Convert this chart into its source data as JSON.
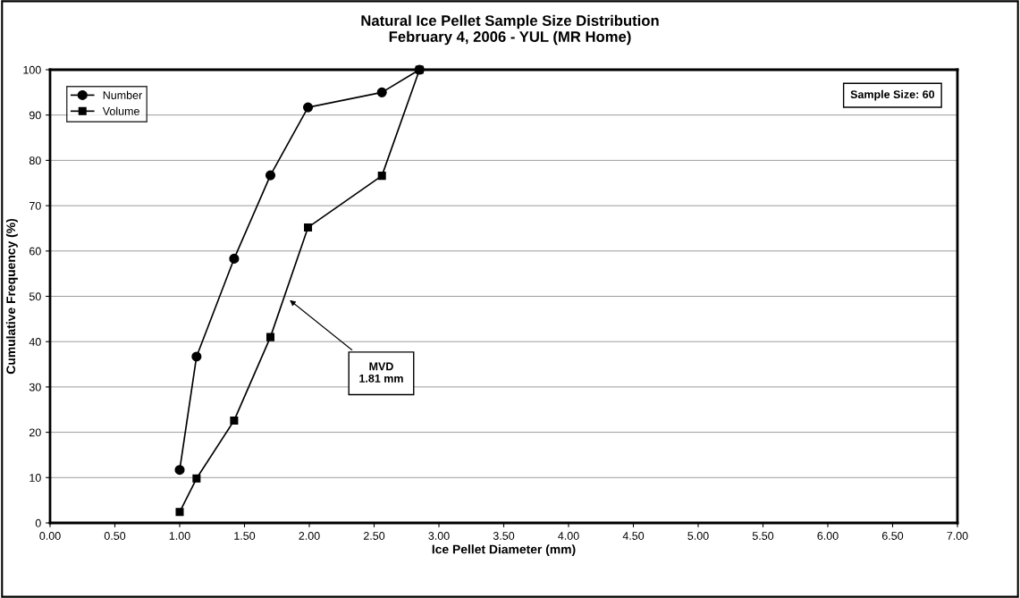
{
  "chart_data": {
    "type": "line",
    "title": "Natural Ice Pellet Sample Size Distribution",
    "subtitle": "February 4, 2006 - YUL (MR Home)",
    "xlabel": "Ice Pellet Diameter (mm)",
    "ylabel": "Cumulative Frequency (%)",
    "x": [
      1.0,
      1.13,
      1.42,
      1.7,
      1.99,
      2.56,
      2.85
    ],
    "series": [
      {
        "name": "Number",
        "color": "#000000",
        "marker": "circle",
        "values": [
          11.7,
          36.7,
          58.3,
          76.7,
          91.7,
          95.0,
          100
        ]
      },
      {
        "name": "Volume",
        "color": "#000000",
        "marker": "square",
        "values": [
          2.4,
          9.8,
          22.6,
          41.0,
          65.2,
          76.6,
          100
        ]
      }
    ],
    "xlim": [
      0,
      7
    ],
    "ylim": [
      0,
      100
    ],
    "xticks": [
      {
        "value": 0,
        "label": "0.00"
      },
      {
        "value": 0.5,
        "label": "0.50"
      },
      {
        "value": 1,
        "label": "1.00"
      },
      {
        "value": 1.5,
        "label": "1.50"
      },
      {
        "value": 2,
        "label": "2.00"
      },
      {
        "value": 2.5,
        "label": "2.50"
      },
      {
        "value": 3,
        "label": "3.00"
      },
      {
        "value": 3.5,
        "label": "3.50"
      },
      {
        "value": 4,
        "label": "4.00"
      },
      {
        "value": 4.5,
        "label": "4.50"
      },
      {
        "value": 5,
        "label": "5.00"
      },
      {
        "value": 5.5,
        "label": "5.50"
      },
      {
        "value": 6,
        "label": "6.00"
      },
      {
        "value": 6.5,
        "label": "6.50"
      },
      {
        "value": 7,
        "label": "7.00"
      }
    ],
    "yticks": [
      0,
      10,
      20,
      30,
      40,
      50,
      60,
      70,
      80,
      90,
      100
    ],
    "grid": "y",
    "legend": "top left",
    "line_style": "solid",
    "annotations": [
      "MVD\n1.81 mm",
      "Sample Size: 60"
    ]
  }
}
